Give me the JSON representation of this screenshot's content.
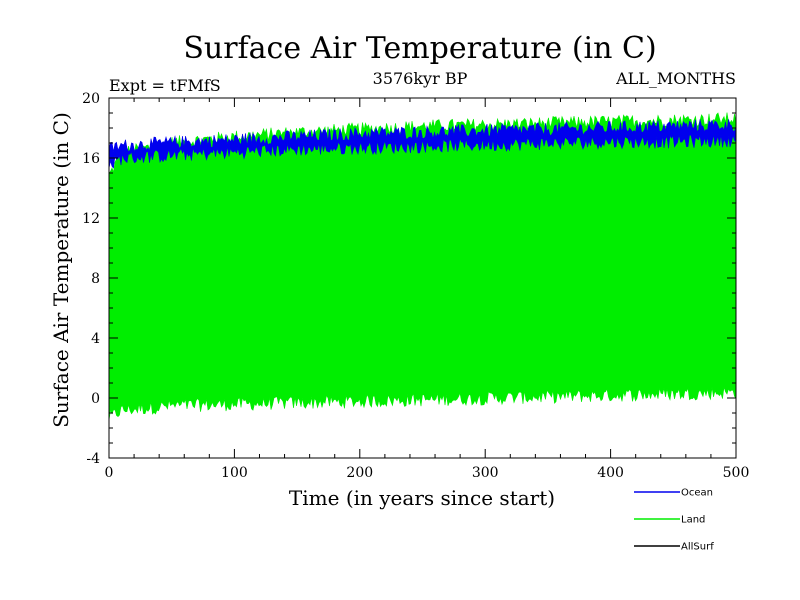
{
  "chart_data": {
    "type": "line",
    "title": "Surface Air Temperature (in C)",
    "subtitle_left": "Expt = tFMfS",
    "subtitle_center": "3576kyr BP",
    "subtitle_right": "ALL_MONTHS",
    "xlabel": "Time (in years since start)",
    "ylabel": "Surface Air Temperature (in C)",
    "xlim": [
      0,
      500
    ],
    "ylim": [
      -4,
      20
    ],
    "xticks": [
      0,
      100,
      200,
      300,
      400,
      500
    ],
    "yticks": [
      -4,
      0,
      4,
      8,
      12,
      16,
      20
    ],
    "xtick_labels": [
      "0",
      "100",
      "200",
      "300",
      "400",
      "500"
    ],
    "ytick_labels": [
      "-4",
      "0",
      "4",
      "8",
      "12",
      "16",
      "20"
    ],
    "series": [
      {
        "name": "Land",
        "color": "#00ee00",
        "anchor_x": [
          0,
          10,
          50,
          100,
          150,
          200,
          250,
          300,
          350,
          400,
          450,
          500
        ],
        "upper": [
          15.0,
          16.5,
          17.2,
          17.6,
          17.9,
          18.1,
          18.3,
          18.4,
          18.5,
          18.6,
          18.7,
          18.8
        ],
        "lower": [
          -1.5,
          -1.0,
          -0.7,
          -0.6,
          -0.5,
          -0.4,
          -0.3,
          -0.2,
          -0.1,
          0.0,
          0.1,
          0.2
        ]
      },
      {
        "name": "Ocean",
        "color": "#0000ee",
        "anchor_x": [
          0,
          10,
          50,
          100,
          150,
          200,
          250,
          300,
          350,
          400,
          450,
          500
        ],
        "upper": [
          16.8,
          17.0,
          17.2,
          17.4,
          17.6,
          17.8,
          17.9,
          18.0,
          18.1,
          18.2,
          18.3,
          18.4
        ],
        "lower": [
          15.3,
          15.8,
          16.0,
          16.2,
          16.4,
          16.5,
          16.6,
          16.7,
          16.8,
          16.9,
          16.9,
          17.0
        ]
      },
      {
        "name": "AllSurf",
        "color": "#000000",
        "anchor_x": [],
        "upper": [],
        "lower": []
      }
    ],
    "legend": {
      "placement": "bottom-right",
      "entries": [
        {
          "label": "Ocean",
          "color": "#0000ee"
        },
        {
          "label": "Land",
          "color": "#00ee00"
        },
        {
          "label": "AllSurf",
          "color": "#000000"
        }
      ]
    }
  }
}
